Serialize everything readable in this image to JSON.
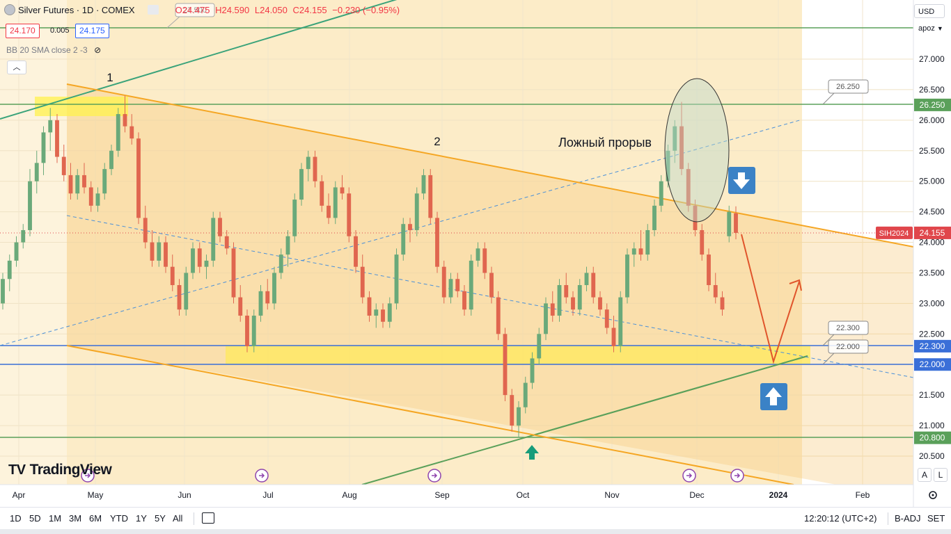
{
  "header": {
    "title": "Silver Futures · 1D · COMEX",
    "open": "O24.475",
    "high": "H24.590",
    "low": "L24.050",
    "close": "C24.155",
    "change": "−0.230 (−0.95%)",
    "sell_price": "24.170",
    "spread": "0.005",
    "buy_price": "24.175",
    "indicator": "BB 20 SMA close 2 -3",
    "ghost_tag": "27.500"
  },
  "toolbar": {
    "currency": "USD",
    "scale_mode": "apoz",
    "auto_label": "A",
    "log_label": "L"
  },
  "bottom": {
    "ranges": [
      "1D",
      "5D",
      "1M",
      "3M",
      "6M",
      "YTD",
      "1Y",
      "5Y",
      "All"
    ],
    "time": "12:20:12 (UTC+2)",
    "adj": "B-ADJ",
    "session": "SET"
  },
  "logo": "TradingView",
  "colors": {
    "up": "#6aa97a",
    "down": "#e0664f",
    "channel": "#f5a623",
    "green_line": "#5aa05a",
    "blue_line": "#3a6fd8",
    "zone": "#fde68a",
    "arrow_box": "#3b82c6",
    "projection": "#e0542b",
    "last_price": "#e0464b"
  },
  "chart_data": {
    "type": "candlestick",
    "title": "Silver Futures · 1D · COMEX",
    "symbol": "SIH2024",
    "last_price": 24.155,
    "y_axis": {
      "range": [
        20.35,
        27.75
      ],
      "ticks": [
        "27.000",
        "26.500",
        "26.000",
        "25.500",
        "25.000",
        "24.500",
        "24.000",
        "23.500",
        "23.000",
        "22.500",
        "22.000",
        "21.500",
        "21.000",
        "20.500"
      ]
    },
    "x_axis": {
      "labels": [
        "Apr",
        "May",
        "Jun",
        "Jul",
        "Aug",
        "Sep",
        "Oct",
        "Nov",
        "Dec",
        "2024",
        "Feb"
      ]
    },
    "horizontal_levels": [
      {
        "price": 27.5,
        "label": "",
        "color": "green"
      },
      {
        "price": 26.25,
        "label": "26.250",
        "color": "green"
      },
      {
        "price": 22.3,
        "label": "22.300",
        "color": "blue"
      },
      {
        "price": 22.0,
        "label": "22.000",
        "color": "blue"
      },
      {
        "price": 20.8,
        "label": "20.800",
        "color": "green"
      }
    ],
    "annotations": [
      {
        "text": "1"
      },
      {
        "text": "2"
      },
      {
        "text": "Ложный прорыв"
      }
    ],
    "price_tags": [
      "26.250",
      "22.300",
      "22.000"
    ],
    "candles": [
      [
        23.0,
        23.5,
        22.9,
        23.4
      ],
      [
        23.4,
        23.8,
        23.2,
        23.7
      ],
      [
        23.7,
        24.1,
        23.6,
        24.0
      ],
      [
        24.0,
        24.3,
        23.9,
        24.2
      ],
      [
        24.2,
        25.2,
        24.1,
        25.0
      ],
      [
        25.0,
        25.5,
        24.8,
        25.3
      ],
      [
        25.3,
        25.9,
        25.1,
        25.8
      ],
      [
        25.8,
        26.2,
        25.5,
        26.0
      ],
      [
        26.0,
        26.1,
        25.3,
        25.4
      ],
      [
        25.4,
        25.6,
        25.0,
        25.1
      ],
      [
        25.1,
        25.3,
        24.7,
        24.8
      ],
      [
        24.8,
        25.2,
        24.7,
        25.1
      ],
      [
        25.1,
        25.3,
        24.8,
        24.9
      ],
      [
        24.9,
        25.0,
        24.5,
        24.6
      ],
      [
        24.6,
        24.9,
        24.5,
        24.8
      ],
      [
        24.8,
        25.3,
        24.7,
        25.2
      ],
      [
        25.2,
        25.6,
        25.1,
        25.5
      ],
      [
        25.5,
        26.2,
        25.4,
        26.1
      ],
      [
        26.1,
        26.4,
        25.8,
        25.9
      ],
      [
        25.9,
        26.1,
        25.6,
        25.7
      ],
      [
        25.7,
        25.8,
        24.3,
        24.4
      ],
      [
        24.4,
        24.6,
        23.9,
        24.0
      ],
      [
        24.0,
        24.2,
        23.6,
        23.7
      ],
      [
        23.7,
        24.1,
        23.6,
        24.0
      ],
      [
        24.0,
        24.1,
        23.5,
        23.6
      ],
      [
        23.6,
        23.8,
        23.2,
        23.3
      ],
      [
        23.3,
        23.4,
        22.8,
        22.9
      ],
      [
        22.9,
        23.6,
        22.8,
        23.5
      ],
      [
        23.5,
        24.0,
        23.4,
        23.9
      ],
      [
        23.9,
        24.0,
        23.5,
        23.6
      ],
      [
        23.6,
        23.8,
        23.4,
        23.7
      ],
      [
        23.7,
        24.5,
        23.6,
        24.4
      ],
      [
        24.4,
        24.5,
        24.0,
        24.1
      ],
      [
        24.1,
        24.2,
        23.8,
        23.9
      ],
      [
        23.9,
        24.0,
        23.0,
        23.1
      ],
      [
        23.1,
        23.3,
        22.7,
        22.8
      ],
      [
        22.8,
        22.9,
        22.2,
        22.3
      ],
      [
        22.3,
        22.9,
        22.2,
        22.8
      ],
      [
        22.8,
        23.3,
        22.7,
        23.2
      ],
      [
        23.2,
        23.4,
        22.9,
        23.0
      ],
      [
        23.0,
        23.6,
        22.9,
        23.5
      ],
      [
        23.5,
        23.9,
        23.4,
        23.8
      ],
      [
        23.8,
        24.2,
        23.6,
        24.1
      ],
      [
        24.1,
        24.8,
        24.0,
        24.7
      ],
      [
        24.7,
        25.3,
        24.6,
        25.2
      ],
      [
        25.2,
        25.5,
        25.0,
        25.4
      ],
      [
        25.4,
        25.5,
        24.9,
        25.0
      ],
      [
        25.0,
        25.1,
        24.5,
        24.6
      ],
      [
        24.6,
        24.8,
        24.3,
        24.4
      ],
      [
        24.4,
        25.0,
        24.3,
        24.9
      ],
      [
        24.9,
        25.1,
        24.7,
        24.8
      ],
      [
        24.8,
        24.9,
        24.0,
        24.1
      ],
      [
        24.1,
        24.2,
        23.5,
        23.6
      ],
      [
        23.6,
        23.8,
        23.0,
        23.1
      ],
      [
        23.1,
        23.2,
        22.7,
        22.8
      ],
      [
        22.8,
        23.0,
        22.6,
        22.9
      ],
      [
        22.9,
        23.0,
        22.6,
        22.7
      ],
      [
        22.7,
        23.1,
        22.6,
        23.0
      ],
      [
        23.0,
        23.9,
        22.9,
        23.8
      ],
      [
        23.8,
        24.4,
        23.7,
        24.3
      ],
      [
        24.3,
        24.4,
        24.0,
        24.2
      ],
      [
        24.2,
        24.9,
        24.1,
        24.8
      ],
      [
        24.8,
        25.2,
        24.7,
        25.1
      ],
      [
        25.1,
        25.2,
        24.3,
        24.4
      ],
      [
        24.4,
        24.5,
        23.5,
        23.6
      ],
      [
        23.6,
        23.7,
        23.0,
        23.1
      ],
      [
        23.1,
        23.5,
        23.0,
        23.4
      ],
      [
        23.4,
        23.5,
        23.1,
        23.2
      ],
      [
        23.2,
        23.3,
        22.8,
        22.9
      ],
      [
        22.9,
        23.8,
        22.8,
        23.7
      ],
      [
        23.7,
        24.0,
        23.6,
        23.9
      ],
      [
        23.9,
        24.0,
        23.4,
        23.5
      ],
      [
        23.5,
        23.6,
        23.0,
        23.1
      ],
      [
        23.1,
        23.2,
        22.4,
        22.5
      ],
      [
        22.5,
        22.6,
        21.4,
        21.5
      ],
      [
        21.5,
        21.6,
        20.9,
        21.0
      ],
      [
        21.0,
        21.4,
        20.8,
        21.3
      ],
      [
        21.3,
        21.8,
        21.2,
        21.7
      ],
      [
        21.7,
        22.2,
        21.6,
        22.1
      ],
      [
        22.1,
        22.6,
        22.0,
        22.5
      ],
      [
        22.5,
        23.1,
        22.4,
        23.0
      ],
      [
        23.0,
        23.2,
        22.7,
        22.8
      ],
      [
        22.8,
        23.4,
        22.7,
        23.3
      ],
      [
        23.3,
        23.5,
        23.0,
        23.1
      ],
      [
        23.1,
        23.2,
        22.8,
        22.9
      ],
      [
        22.9,
        23.4,
        22.8,
        23.3
      ],
      [
        23.3,
        23.6,
        23.2,
        23.5
      ],
      [
        23.5,
        23.6,
        23.0,
        23.1
      ],
      [
        23.1,
        23.2,
        22.8,
        22.9
      ],
      [
        22.9,
        23.0,
        22.5,
        22.6
      ],
      [
        22.6,
        22.8,
        22.2,
        22.3
      ],
      [
        22.3,
        23.2,
        22.2,
        23.1
      ],
      [
        23.1,
        23.9,
        23.0,
        23.8
      ],
      [
        23.8,
        24.0,
        23.6,
        23.9
      ],
      [
        23.9,
        24.2,
        23.7,
        23.8
      ],
      [
        23.8,
        24.3,
        23.7,
        24.2
      ],
      [
        24.2,
        24.7,
        24.1,
        24.6
      ],
      [
        24.6,
        25.1,
        24.5,
        25.0
      ],
      [
        25.0,
        25.6,
        24.9,
        25.5
      ],
      [
        25.5,
        26.0,
        25.3,
        25.9
      ],
      [
        25.9,
        26.3,
        25.1,
        25.2
      ],
      [
        25.2,
        25.3,
        24.5,
        24.6
      ],
      [
        24.6,
        24.7,
        24.1,
        24.2
      ],
      [
        24.2,
        24.3,
        23.7,
        23.8
      ],
      [
        23.8,
        23.9,
        23.2,
        23.3
      ],
      [
        23.3,
        23.5,
        23.0,
        23.1
      ],
      [
        23.1,
        23.2,
        22.8,
        22.9
      ],
      [
        24.1,
        24.6,
        24.0,
        24.5
      ],
      [
        24.475,
        24.59,
        24.05,
        24.155
      ]
    ]
  }
}
